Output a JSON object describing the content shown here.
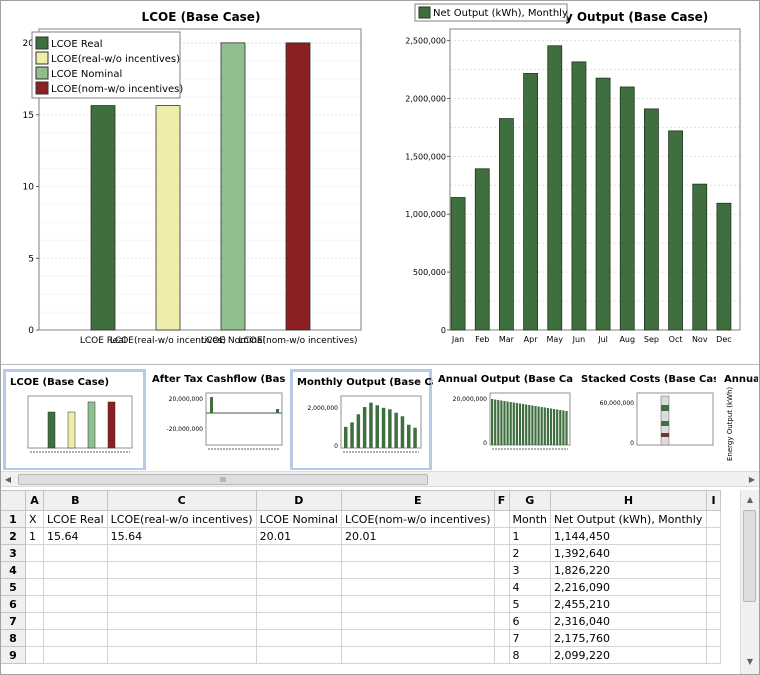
{
  "lcoe_chart": {
    "chart_data": {
      "type": "bar",
      "title": "LCOE (Base Case)",
      "categories": [
        "LCOE Real",
        "LCOE(real-w/o incentives)",
        "LCOE Nominal",
        "LCOE(nom-w/o incentives)"
      ],
      "values": [
        15.64,
        15.64,
        20.01,
        20.01
      ],
      "colors": [
        "#3f6e3f",
        "#eeeeaa",
        "#8fbf8f",
        "#8b2020"
      ],
      "ylim": [
        0,
        20
      ],
      "yticks": [
        0,
        5,
        10,
        15,
        20
      ],
      "ytick_labels": [
        "0",
        "5",
        "10",
        "15",
        "20"
      ],
      "legend": [
        "LCOE Real",
        "LCOE(real-w/o incentives)",
        "LCOE Nominal",
        "LCOE(nom-w/o incentives)"
      ],
      "legend_position": "top-left",
      "grid": true
    }
  },
  "monthly_chart": {
    "chart_data": {
      "type": "bar",
      "title": "Monthly Output (Base Case)",
      "categories": [
        "Jan",
        "Feb",
        "Mar",
        "Apr",
        "May",
        "Jun",
        "Jul",
        "Aug",
        "Sep",
        "Oct",
        "Nov",
        "Dec"
      ],
      "series": [
        {
          "name": "Net Output (kWh), Monthly",
          "values": [
            1144450,
            1392640,
            1826220,
            2216090,
            2455210,
            2316040,
            2175760,
            2099220,
            1910000,
            1720000,
            1260000,
            1095000
          ]
        }
      ],
      "color": "#3f6e3f",
      "ylim": [
        0,
        2600000
      ],
      "yticks": [
        0,
        500000,
        1000000,
        1500000,
        2000000,
        2500000
      ],
      "ytick_labels": [
        "0",
        "500,000",
        "1,000,000",
        "1,500,000",
        "2,000,000",
        "2,500,000"
      ],
      "legend_position": "top",
      "grid": true
    }
  },
  "thumbnails": [
    {
      "title": "LCOE (Base Case)",
      "selected": true,
      "yticks": []
    },
    {
      "title": "After Tax Cashflow (Base Case)",
      "selected": false,
      "yticks": [
        "20,000,000",
        "-20,000,000"
      ]
    },
    {
      "title": "Monthly Output (Base Case)",
      "selected": true,
      "yticks": [
        "2,000,000",
        "0"
      ]
    },
    {
      "title": "Annual Output (Base Case)",
      "selected": false,
      "yticks": [
        "20,000,000",
        "0"
      ]
    },
    {
      "title": "Stacked Costs (Base Case)",
      "selected": false,
      "yticks": [
        "60,000,000",
        "0"
      ]
    },
    {
      "title": "Annual Output (Base Case)",
      "selected": false,
      "yticks": [],
      "ylabel": "Energy Output (kWh)"
    }
  ],
  "scrollbar": {
    "grip": "III"
  },
  "sheet": {
    "columns": [
      "A",
      "B",
      "C",
      "D",
      "E",
      "F",
      "G",
      "H",
      "I"
    ],
    "rows": [
      {
        "num": "1",
        "cells": [
          "X",
          "LCOE Real",
          "LCOE(real-w/o incentives)",
          "LCOE Nominal",
          "LCOE(nom-w/o incentives)",
          "",
          "Month",
          "Net Output (kWh), Monthly",
          ""
        ]
      },
      {
        "num": "2",
        "cells": [
          "1",
          "15.64",
          "15.64",
          "20.01",
          "20.01",
          "",
          "1",
          "1,144,450",
          ""
        ]
      },
      {
        "num": "3",
        "cells": [
          "",
          "",
          "",
          "",
          "",
          "",
          "2",
          "1,392,640",
          ""
        ]
      },
      {
        "num": "4",
        "cells": [
          "",
          "",
          "",
          "",
          "",
          "",
          "3",
          "1,826,220",
          ""
        ]
      },
      {
        "num": "5",
        "cells": [
          "",
          "",
          "",
          "",
          "",
          "",
          "4",
          "2,216,090",
          ""
        ]
      },
      {
        "num": "6",
        "cells": [
          "",
          "",
          "",
          "",
          "",
          "",
          "5",
          "2,455,210",
          ""
        ]
      },
      {
        "num": "7",
        "cells": [
          "",
          "",
          "",
          "",
          "",
          "",
          "6",
          "2,316,040",
          ""
        ]
      },
      {
        "num": "8",
        "cells": [
          "",
          "",
          "",
          "",
          "",
          "",
          "7",
          "2,175,760",
          ""
        ]
      },
      {
        "num": "9",
        "cells": [
          "",
          "",
          "",
          "",
          "",
          "",
          "8",
          "2,099,220",
          ""
        ]
      }
    ]
  }
}
